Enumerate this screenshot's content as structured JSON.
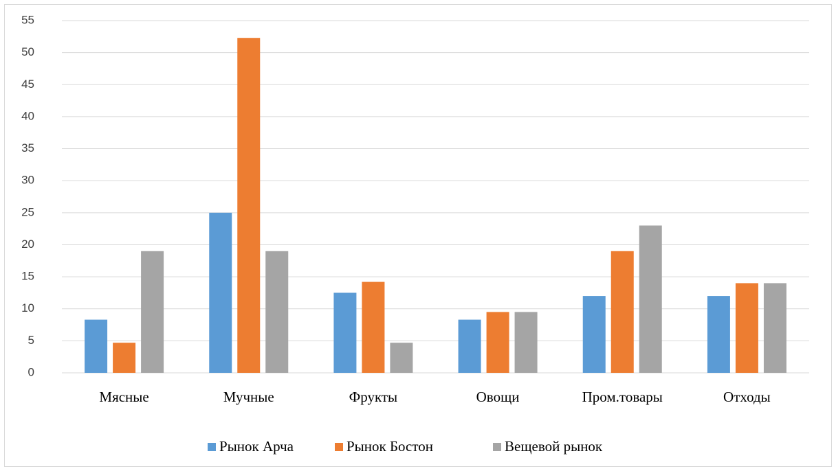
{
  "chart_data": {
    "type": "bar",
    "categories": [
      "Мясные",
      "Мучные",
      "Фрукты",
      "Овощи",
      "Пром.товары",
      "Отходы"
    ],
    "series": [
      {
        "name": "Рынок Арча",
        "color": "#5b9bd5",
        "values": [
          8.3,
          25,
          12.5,
          8.3,
          12,
          12
        ]
      },
      {
        "name": "Рынок Бостон",
        "color": "#ed7d31",
        "values": [
          4.7,
          52.3,
          14.2,
          9.5,
          19,
          14
        ]
      },
      {
        "name": "Вещевой рынок",
        "color": "#a5a5a5",
        "values": [
          19,
          19,
          4.7,
          9.5,
          23,
          14
        ]
      }
    ],
    "ylim": [
      0,
      55
    ],
    "yticks": [
      0,
      5,
      10,
      15,
      20,
      25,
      30,
      35,
      40,
      45,
      50,
      55
    ],
    "grid": true,
    "legend": "bottom"
  }
}
